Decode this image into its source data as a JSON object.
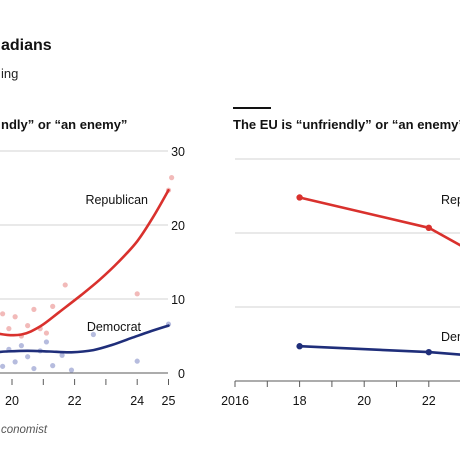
{
  "header": {
    "headline": "adians",
    "subhead": "ing"
  },
  "source": "conomist",
  "chart_data": [
    {
      "type": "line",
      "title": "ndly” or “an enemy”",
      "ylim": [
        0,
        30
      ],
      "yticks": [
        0,
        10,
        20,
        30
      ],
      "xticks": [
        "20",
        "22",
        "24",
        "25"
      ],
      "grid": true,
      "series": [
        {
          "name": "Republican",
          "color": "#d9312d",
          "trend": [
            [
              18.6,
              7.5
            ],
            [
              19.0,
              6.2
            ],
            [
              19.6,
              5.3
            ],
            [
              20.3,
              5.2
            ],
            [
              20.9,
              6.3
            ],
            [
              21.5,
              8.2
            ],
            [
              22.2,
              10.5
            ],
            [
              22.8,
              12.6
            ],
            [
              23.4,
              15.0
            ],
            [
              24.0,
              17.8
            ],
            [
              24.5,
              21.0
            ],
            [
              25.0,
              24.7
            ]
          ],
          "points": [
            [
              18.9,
              7.5
            ],
            [
              19.2,
              5.5
            ],
            [
              19.5,
              6.8
            ],
            [
              19.7,
              8.0
            ],
            [
              19.9,
              6.0
            ],
            [
              20.1,
              7.6
            ],
            [
              20.3,
              5.0
            ],
            [
              20.5,
              6.4
            ],
            [
              20.7,
              8.6
            ],
            [
              20.9,
              6.0
            ],
            [
              21.1,
              5.4
            ],
            [
              21.3,
              9.0
            ],
            [
              21.7,
              11.9
            ],
            [
              24.0,
              10.7
            ],
            [
              25.0,
              24.7
            ],
            [
              25.1,
              26.4
            ]
          ]
        },
        {
          "name": "Democrat",
          "color": "#1f2e7a",
          "trend": [
            [
              18.6,
              2.6
            ],
            [
              19.2,
              2.7
            ],
            [
              19.8,
              2.9
            ],
            [
              20.5,
              3.0
            ],
            [
              21.2,
              2.9
            ],
            [
              21.9,
              2.8
            ],
            [
              22.6,
              3.1
            ],
            [
              23.2,
              3.8
            ],
            [
              23.8,
              4.7
            ],
            [
              24.4,
              5.6
            ],
            [
              25.0,
              6.4
            ]
          ],
          "points": [
            [
              18.8,
              2.5
            ],
            [
              19.0,
              3.5
            ],
            [
              19.3,
              1.8
            ],
            [
              19.5,
              2.8
            ],
            [
              19.7,
              0.9
            ],
            [
              19.9,
              3.2
            ],
            [
              20.1,
              1.5
            ],
            [
              20.3,
              3.7
            ],
            [
              20.5,
              2.2
            ],
            [
              20.7,
              0.6
            ],
            [
              20.9,
              3.0
            ],
            [
              21.1,
              4.2
            ],
            [
              21.3,
              1.0
            ],
            [
              21.6,
              2.4
            ],
            [
              21.9,
              0.4
            ],
            [
              22.6,
              5.2
            ],
            [
              24.0,
              1.6
            ],
            [
              25.0,
              6.6
            ]
          ]
        }
      ]
    },
    {
      "type": "line",
      "title": "The EU is “unfriendly” or “an enemy”",
      "ylim": [
        0,
        30
      ],
      "xticks": [
        "2016",
        "18",
        "20",
        "22"
      ],
      "grid": true,
      "series": [
        {
          "name": "Rep",
          "color": "#d9312d",
          "points": [
            [
              2018,
              24.8
            ],
            [
              2022,
              20.7
            ],
            [
              2023.2,
              17.8
            ]
          ]
        },
        {
          "name": "Dem",
          "color": "#1f2e7a",
          "points": [
            [
              2018,
              4.7
            ],
            [
              2022,
              3.9
            ],
            [
              2023.2,
              3.5
            ]
          ]
        }
      ]
    }
  ]
}
